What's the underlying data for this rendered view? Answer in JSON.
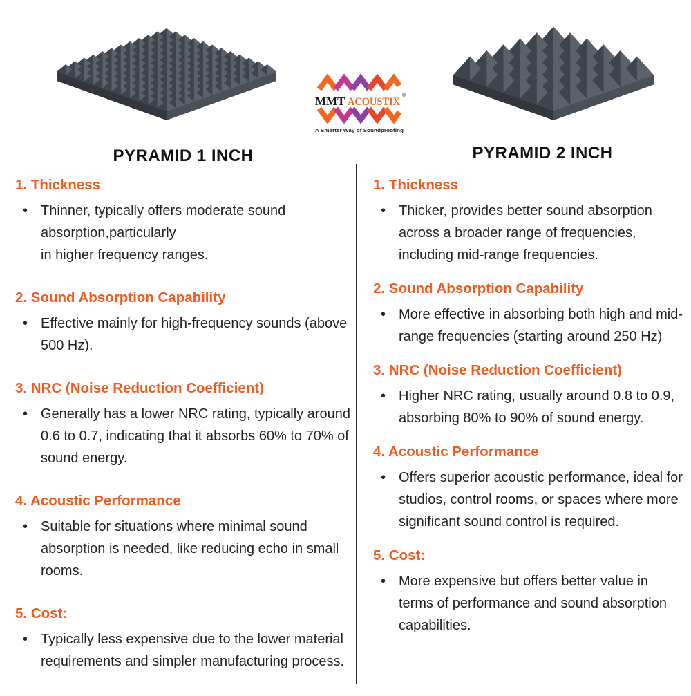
{
  "brand": {
    "name_primary": "MMT",
    "name_secondary": "ACOUSTIX",
    "registered_mark": "®",
    "tagline": "A Smarter Way of Soundproofing"
  },
  "left": {
    "title": "PYRAMID 1 INCH",
    "sections": [
      {
        "heading": "1. Thickness",
        "bullets": [
          "Thinner, typically offers moderate sound absorption,particularly\nin higher frequency ranges."
        ]
      },
      {
        "heading": "2. Sound Absorption Capability",
        "bullets": [
          "Effective mainly for high-frequency sounds (above 500 Hz)."
        ]
      },
      {
        "heading": "3. NRC (Noise Reduction Coefficient)",
        "bullets": [
          "Generally has a lower NRC rating, typically around 0.6 to 0.7, indicating that it absorbs 60% to 70% of sound energy."
        ]
      },
      {
        "heading": "4. Acoustic Performance",
        "bullets": [
          "Suitable for situations where minimal sound absorption is needed, like reducing echo in small rooms."
        ]
      },
      {
        "heading": "5. Cost:",
        "bullets": [
          "Typically less expensive due to the lower material requirements and simpler manufacturing process."
        ]
      }
    ]
  },
  "right": {
    "title": "PYRAMID 2 INCH",
    "sections": [
      {
        "heading": "1. Thickness",
        "bullets": [
          "Thicker, provides better sound absorption across a broader range of frequencies, including mid-range frequencies."
        ]
      },
      {
        "heading": "2. Sound Absorption Capability",
        "bullets": [
          "More effective in absorbing both high and mid-range frequencies (starting around 250 Hz)"
        ]
      },
      {
        "heading": "3. NRC (Noise Reduction Coefficient)",
        "bullets": [
          "Higher NRC rating, usually around 0.8 to 0.9, absorbing 80% to 90% of sound energy."
        ]
      },
      {
        "heading": "4. Acoustic Performance",
        "bullets": [
          "Offers superior acoustic performance, ideal for studios, control rooms, or spaces where more significant sound control is required."
        ]
      },
      {
        "heading": "5. Cost:",
        "bullets": [
          " More expensive but offers better value in terms of performance and sound absorption capabilities."
        ]
      }
    ]
  },
  "colors": {
    "heading_orange": "#F25A1E",
    "title_text": "#121212",
    "body_text": "#232323",
    "divider": "#2e2e2e",
    "brand_orange": "#F26822",
    "brand_black": "#1c1c1c",
    "logo_chevrons": [
      "#F26822",
      "#C2398F",
      "#8E3FA8",
      "#E8462B"
    ],
    "foam": {
      "base": "#2f3338",
      "side_left": "#33373d",
      "side_right": "#4a5058",
      "back_left": "#2a2e34",
      "back_right": "#33383f",
      "front_left": "#3e444c",
      "front_right": "#5a616a"
    }
  }
}
